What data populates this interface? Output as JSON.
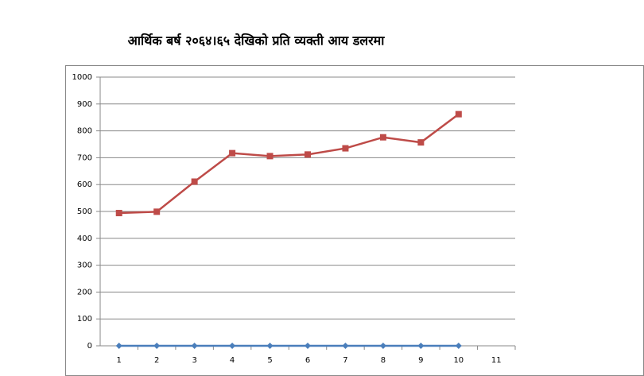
{
  "chart_data": {
    "type": "line",
    "title": "आर्थिक बर्ष २०६४।६५ देखिको प्रति व्यक्ती आय डलरमा",
    "categories": [
      "1",
      "2",
      "3",
      "4",
      "5",
      "6",
      "7",
      "8",
      "9",
      "10",
      "11"
    ],
    "series": [
      {
        "color": "#4a7ebb",
        "marker": "diamond",
        "values": [
          0,
          0,
          0,
          0,
          0,
          0,
          0,
          0,
          0,
          0,
          null
        ]
      },
      {
        "color": "#be4b48",
        "marker": "square",
        "values": [
          494,
          499,
          611,
          717,
          706,
          712,
          735,
          776,
          757,
          862,
          null
        ]
      }
    ],
    "ylim": [
      0,
      1000
    ],
    "yticks": [
      0,
      100,
      200,
      300,
      400,
      500,
      600,
      700,
      800,
      900,
      1000
    ],
    "grid": true
  }
}
